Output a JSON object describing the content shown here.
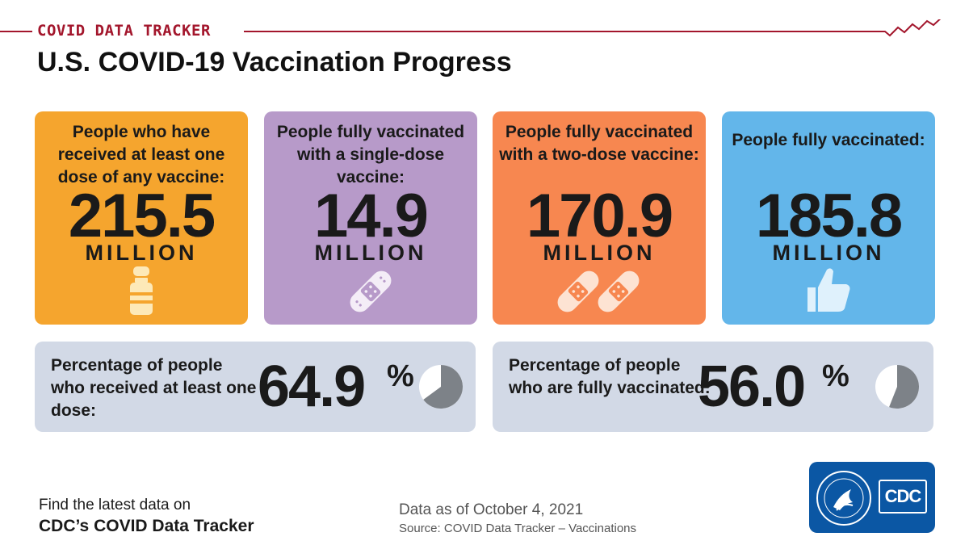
{
  "header": {
    "tracker_label": "COVID DATA TRACKER",
    "title": "U.S. COVID-19 Vaccination Progress",
    "accent_color": "#a3162c"
  },
  "cards": [
    {
      "label": "People who have received at least one dose of any vaccine:",
      "value": "215.5",
      "unit": "MILLION",
      "icon": "vaccine-vial-icon",
      "color": "#f5a52e"
    },
    {
      "label": "People fully vaccinated with a single-dose vaccine:",
      "value": "14.9",
      "unit": "MILLION",
      "icon": "bandage-icon",
      "color": "#b79ac9"
    },
    {
      "label": "People fully vaccinated with a two-dose vaccine:",
      "value": "170.9",
      "unit": "MILLION",
      "icon": "two-bandages-icon",
      "color": "#f78750"
    },
    {
      "label": "People fully vaccinated:",
      "value": "185.8",
      "unit": "MILLION",
      "icon": "thumbs-up-icon",
      "color": "#63b6ea"
    }
  ],
  "percentages": [
    {
      "label": "Percentage of people who received at least one dose:",
      "value": "64.9",
      "sign": "%",
      "fraction": 0.649,
      "icon": "pie-chart-icon"
    },
    {
      "label": "Percentage of people who are fully vaccinated:",
      "value": "56.0",
      "sign": "%",
      "fraction": 0.56,
      "icon": "pie-chart-icon"
    }
  ],
  "footer": {
    "find_text": "Find the latest data on",
    "tracker_link": "CDC’s COVID Data Tracker",
    "data_date": "Data as of October 4, 2021",
    "source": "Source: COVID Data Tracker – Vaccinations",
    "logo_text": "CDC"
  },
  "colors": {
    "panel_gray": "#d2d9e6",
    "pie_fill": "#7d8288",
    "logo_blue": "#0b57a4"
  }
}
